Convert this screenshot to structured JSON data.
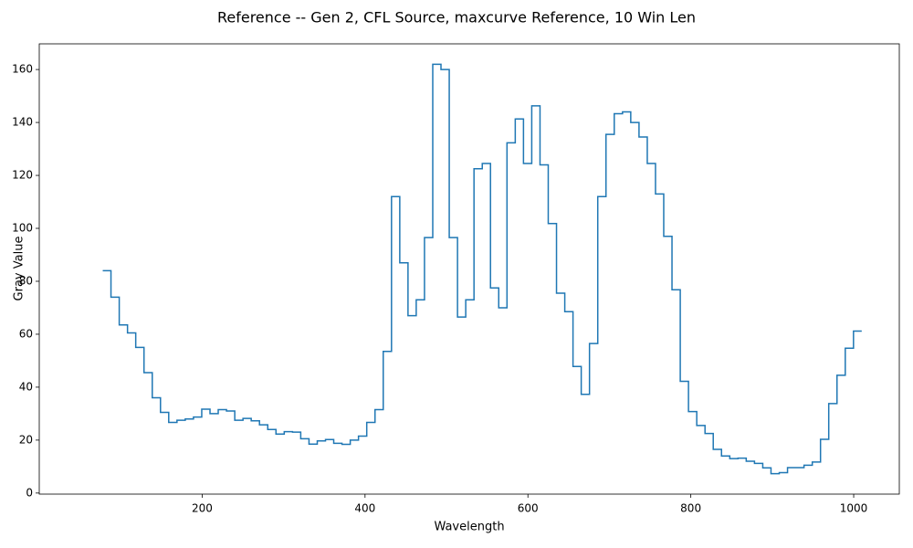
{
  "chart_data": {
    "type": "step",
    "title": "Reference -- Gen 2, CFL Source, maxcurve Reference, 10 Win Len",
    "xlabel": "Wavelength",
    "ylabel": "Gray Value",
    "x": [
      83.0,
      93.1,
      103.3,
      113.4,
      123.5,
      133.7,
      143.8,
      153.9,
      164.0,
      174.2,
      184.3,
      194.4,
      204.6,
      214.7,
      224.8,
      235.0,
      245.1,
      255.2,
      265.3,
      275.5,
      285.6,
      295.7,
      305.9,
      316.0,
      326.1,
      336.3,
      346.4,
      356.5,
      366.6,
      376.8,
      386.9,
      397.0,
      407.2,
      417.3,
      427.4,
      437.6,
      447.7,
      457.8,
      467.9,
      478.1,
      488.2,
      498.3,
      508.5,
      518.6,
      528.7,
      538.9,
      549.0,
      559.1,
      569.2,
      579.4,
      589.5,
      599.6,
      609.8,
      619.9,
      630.0,
      640.2,
      650.3,
      660.4,
      670.5,
      680.7,
      690.8,
      700.9,
      711.1,
      721.2,
      731.3,
      741.5,
      751.6,
      761.7,
      771.8,
      782.0,
      792.1,
      802.2,
      812.4,
      822.5,
      832.6,
      842.8,
      852.9,
      863.0,
      873.1,
      883.3,
      893.4,
      903.5,
      913.7,
      923.8,
      933.9,
      944.1,
      954.2,
      964.3,
      974.4,
      984.6,
      994.7,
      1004.8
    ],
    "series": [
      {
        "name": "Reference",
        "color": "#1f77b4",
        "values": [
          84,
          74,
          63.5,
          60.5,
          55,
          45.5,
          36,
          30.5,
          26.7,
          27.5,
          28,
          28.7,
          31.7,
          30,
          31.5,
          31,
          27.5,
          28.2,
          27.3,
          25.8,
          24,
          22.3,
          23.2,
          23,
          20.5,
          18.5,
          19.7,
          20.2,
          18.8,
          18.4,
          20,
          21.5,
          26.7,
          31.5,
          53.5,
          112,
          87,
          67,
          73,
          96.5,
          162,
          160,
          96.5,
          66.5,
          73,
          122.5,
          124.5,
          77.5,
          70,
          132.3,
          141.3,
          124.5,
          146.3,
          124,
          101.8,
          75.5,
          68.5,
          47.8,
          37.3,
          56.5,
          112,
          135.5,
          143.3,
          144,
          140,
          134.5,
          124.5,
          113,
          97,
          76.8,
          42.2,
          30.8,
          25.5,
          22.5,
          16.5,
          14,
          13,
          13.2,
          12,
          11.2,
          9.5,
          7.3,
          7.7,
          9.6,
          9.6,
          10.5,
          11.7,
          20.3,
          33.8,
          44.5,
          54.7,
          61.2
        ]
      }
    ],
    "xlim": [
      0,
      1056
    ],
    "ylim": [
      -0.4,
      169.7
    ],
    "xticks": [
      200,
      400,
      600,
      800,
      1000
    ],
    "yticks": [
      0,
      20,
      40,
      60,
      80,
      100,
      120,
      140,
      160
    ],
    "grid": false
  }
}
